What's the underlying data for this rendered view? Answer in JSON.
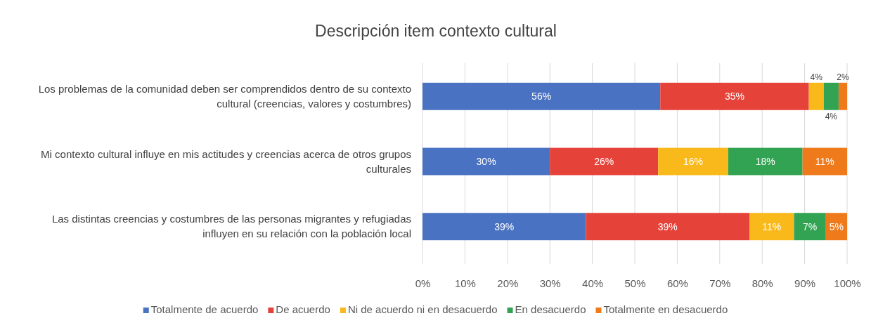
{
  "chart_data": {
    "type": "bar",
    "orientation": "horizontal",
    "stacked": true,
    "title": "Descripción item contexto cultural",
    "categories": [
      "Los problemas de la comunidad deben ser comprendidos dentro de su contexto cultural (creencias, valores y costumbres)",
      "Mi contexto cultural influye en mis actitudes y creencias acerca de otros grupos culturales",
      "Las distintas creencias y costumbres de las personas migrantes y refugiadas influyen en su relación con la población local"
    ],
    "series": [
      {
        "name": "Totalmente de acuerdo",
        "color": "#4a72c2",
        "values": [
          56,
          30,
          38.5
        ],
        "value_labels": [
          "56%",
          "30%",
          "39%"
        ]
      },
      {
        "name": "De acuerdo",
        "color": "#e5433a",
        "values": [
          35,
          25.5,
          38.5
        ],
        "value_labels": [
          "35%",
          "26%",
          "39%"
        ]
      },
      {
        "name": "Ni de acuerdo ni en desacuerdo",
        "color": "#f9b91a",
        "values": [
          3.5,
          16.5,
          10.5
        ],
        "value_labels": [
          "4%",
          "16%",
          "11%"
        ]
      },
      {
        "name": "En desacuerdo",
        "color": "#32a352",
        "values": [
          3.5,
          17.5,
          7.5
        ],
        "value_labels": [
          "4%",
          "18%",
          "7%"
        ]
      },
      {
        "name": "Totalmente en desacuerdo",
        "color": "#ef7a1c",
        "values": [
          2,
          10.5,
          5
        ],
        "value_labels": [
          "2%",
          "11%",
          "5%"
        ]
      }
    ],
    "xlim": [
      0,
      100
    ],
    "xticks": [
      {
        "value": 0,
        "label": "0%"
      },
      {
        "value": 10,
        "label": "10%"
      },
      {
        "value": 20,
        "label": "20%"
      },
      {
        "value": 30,
        "label": "30%"
      },
      {
        "value": 40,
        "label": "40%"
      },
      {
        "value": 50,
        "label": "50%"
      },
      {
        "value": 60,
        "label": "60%"
      },
      {
        "value": 70,
        "label": "70%"
      },
      {
        "value": 80,
        "label": "80%"
      },
      {
        "value": 90,
        "label": "90%"
      },
      {
        "value": 100,
        "label": "100%"
      }
    ],
    "grid": "x",
    "legend": "bottom"
  }
}
